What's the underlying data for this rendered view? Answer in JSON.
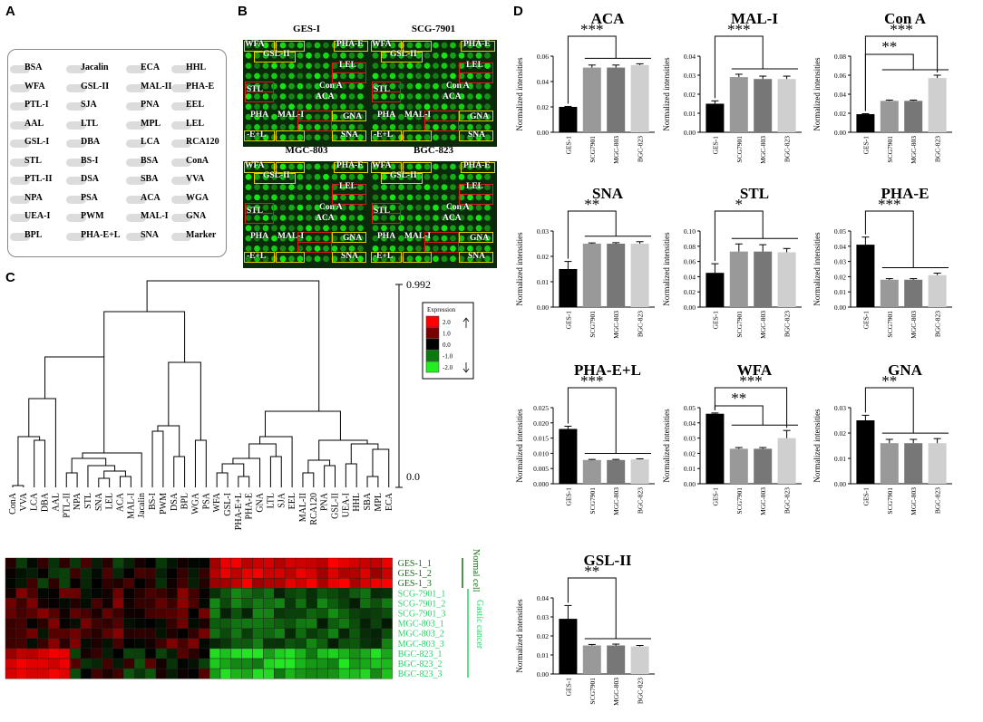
{
  "panels": {
    "a": "A",
    "b": "B",
    "c": "C",
    "d": "D"
  },
  "layout_grid": [
    [
      "BSA",
      "Jacalin",
      "ECA",
      "HHL"
    ],
    [
      "WFA",
      "GSL-II",
      "MAL-II",
      "PHA-E"
    ],
    [
      "PTL-I",
      "SJA",
      "PNA",
      "EEL"
    ],
    [
      "AAL",
      "LTL",
      "MPL",
      "LEL"
    ],
    [
      "GSL-I",
      "DBA",
      "LCA",
      "RCA120"
    ],
    [
      "STL",
      "BS-I",
      "BSA",
      "ConA"
    ],
    [
      "PTL-II",
      "DSA",
      "SBA",
      "VVA"
    ],
    [
      "NPA",
      "PSA",
      "ACA",
      "WGA"
    ],
    [
      "UEA-I",
      "PWM",
      "MAL-I",
      "GNA"
    ],
    [
      "BPL",
      "PHA-E+L",
      "SNA",
      "Marker"
    ]
  ],
  "arrays": [
    {
      "title": "GES-I"
    },
    {
      "title": "SCG-7901"
    },
    {
      "title": "MGC-803"
    },
    {
      "title": "BGC-823"
    }
  ],
  "array_labels": {
    "wfa": "WFA",
    "phae": "PHA-E",
    "gsl": "GSL-II",
    "lel": "LEL",
    "cona": "Con A",
    "stl": "STL",
    "aca": "ACA",
    "pha": "PHA",
    "mali": "MAL-I",
    "gna": "GNA",
    "el": "-E+L",
    "sna": "SNA"
  },
  "dendrogram": {
    "scale_top": "0.992",
    "scale_bottom": "0.0",
    "legend_title": "Expression",
    "legend_values": [
      "2.0",
      "1.0",
      "0.0",
      "-1.0",
      "-2.0"
    ],
    "legend_colors": [
      "#ff0000",
      "#7a0000",
      "#000000",
      "#0a7a0a",
      "#22ee22"
    ],
    "leaves": [
      "ConA",
      "VVA",
      "LCA",
      "DBA",
      "AAL",
      "PTL-II",
      "NPA",
      "STL",
      "SNA",
      "LEL",
      "ACA",
      "MAL-I",
      "Jacalin",
      "BS-I",
      "PWM",
      "DSA",
      "BPL",
      "WGA",
      "PSA",
      "WFA",
      "GSL-I",
      "PHA-E+L",
      "PHA-E",
      "GNA",
      "LTL",
      "SJA",
      "EEL",
      "MAL-II",
      "RCA120",
      "PNA",
      "GSL-II",
      "UEA-I",
      "HHL",
      "SBA",
      "MPL",
      "ECA"
    ]
  },
  "heatmap": {
    "rows": [
      "GES-1_1",
      "GES-1_2",
      "GES-1_3",
      "SCG-7901_1",
      "SCG-7901_2",
      "SCG-7901_3",
      "MGC-803_1",
      "MGC-803_2",
      "MGC-803_3",
      "BGC-823_1",
      "BGC-823_2",
      "BGC-823_3"
    ],
    "group_normal": "Normal cell",
    "group_cancer": "Gastic cancer"
  },
  "chart_data": [
    {
      "type": "bar",
      "title": "ACA",
      "ylabel": "Normalized intensities",
      "categories": [
        "GES-1",
        "SCG7901",
        "MGC-803",
        "BGC-823"
      ],
      "values": [
        0.02,
        0.051,
        0.051,
        0.053
      ],
      "errors": [
        0.0004,
        0.002,
        0.002,
        0.001
      ],
      "ylim": [
        0,
        0.06
      ],
      "yticks": [
        "0.00",
        "0.02",
        "0.04",
        "0.06"
      ],
      "sig": "***"
    },
    {
      "type": "bar",
      "title": "MAL-I",
      "ylabel": "Normalized intensities",
      "categories": [
        "GES-1",
        "SCG7901",
        "MGC-803",
        "BGC-823"
      ],
      "values": [
        0.015,
        0.029,
        0.028,
        0.028
      ],
      "errors": [
        0.0015,
        0.0015,
        0.0015,
        0.0015
      ],
      "ylim": [
        0,
        0.04
      ],
      "yticks": [
        "0.00",
        "0.01",
        "0.02",
        "0.03",
        "0.04"
      ],
      "sig": "***"
    },
    {
      "type": "bar",
      "title": "Con A",
      "ylabel": "Normalized intensities",
      "categories": [
        "GES-1",
        "SCG7901",
        "MGC-803",
        "BGC-823"
      ],
      "values": [
        0.019,
        0.033,
        0.033,
        0.057
      ],
      "errors": [
        0.0005,
        0.0008,
        0.0008,
        0.003
      ],
      "ylim": [
        0,
        0.08
      ],
      "yticks": [
        "0.00",
        "0.02",
        "0.04",
        "0.06",
        "0.08"
      ],
      "sig": "***",
      "sig2": "**"
    },
    {
      "type": "bar",
      "title": "SNA",
      "ylabel": "Normalized intensities",
      "categories": [
        "GES-1",
        "SCG7901",
        "MGC-803",
        "BGC-823"
      ],
      "values": [
        0.015,
        0.025,
        0.025,
        0.025
      ],
      "errors": [
        0.003,
        0.0003,
        0.0004,
        0.0008
      ],
      "ylim": [
        0,
        0.03
      ],
      "yticks": [
        "0.00",
        "0.01",
        "0.02",
        "0.03"
      ],
      "sig": "**"
    },
    {
      "type": "bar",
      "title": "STL",
      "ylabel": "Normalized intensities",
      "categories": [
        "GES-1",
        "SCG7901",
        "MGC-803",
        "BGC-823"
      ],
      "values": [
        0.045,
        0.073,
        0.073,
        0.072
      ],
      "errors": [
        0.012,
        0.01,
        0.009,
        0.005
      ],
      "ylim": [
        0,
        0.1
      ],
      "yticks": [
        "0.00",
        "0.02",
        "0.04",
        "0.06",
        "0.08",
        "0.10"
      ],
      "sig": "*"
    },
    {
      "type": "bar",
      "title": "PHA-E",
      "ylabel": "Normalized intensities",
      "categories": [
        "GES-1",
        "SCG7901",
        "MGC-803",
        "BGC-823"
      ],
      "values": [
        0.041,
        0.018,
        0.018,
        0.021
      ],
      "errors": [
        0.005,
        0.0007,
        0.0007,
        0.0013
      ],
      "ylim": [
        0,
        0.05
      ],
      "yticks": [
        "0.00",
        "0.01",
        "0.02",
        "0.03",
        "0.04",
        "0.05"
      ],
      "sig": "***"
    },
    {
      "type": "bar",
      "title": "PHA-E+L",
      "ylabel": "Normalized intensities",
      "categories": [
        "GES-1",
        "SCG7901",
        "MGC-803",
        "BGC-823"
      ],
      "values": [
        0.018,
        0.0078,
        0.0078,
        0.008
      ],
      "errors": [
        0.0009,
        0.0002,
        0.0002,
        0.0002
      ],
      "ylim": [
        0,
        0.025
      ],
      "yticks": [
        "0.000",
        "0.005",
        "0.010",
        "0.015",
        "0.020",
        "0.025"
      ],
      "sig": "***"
    },
    {
      "type": "bar",
      "title": "WFA",
      "ylabel": "Normalized intensities",
      "categories": [
        "GES-1",
        "SCG7901",
        "MGC-803",
        "BGC-823"
      ],
      "values": [
        0.046,
        0.023,
        0.023,
        0.03
      ],
      "errors": [
        0.0005,
        0.0008,
        0.0008,
        0.005
      ],
      "ylim": [
        0,
        0.05
      ],
      "yticks": [
        "0.00",
        "0.01",
        "0.02",
        "0.03",
        "0.04",
        "0.05"
      ],
      "sig": "***",
      "sig2": "**"
    },
    {
      "type": "bar",
      "title": "GNA",
      "ylabel": "Normalized intensities",
      "categories": [
        "GES-1",
        "SCG7901",
        "MGC-803",
        "BGC-823"
      ],
      "values": [
        0.025,
        0.016,
        0.016,
        0.016
      ],
      "errors": [
        0.002,
        0.0015,
        0.0015,
        0.0018
      ],
      "ylim": [
        0,
        0.03
      ],
      "yticks": [
        "0.00",
        "0.01",
        "0.02",
        "0.03"
      ],
      "sig": "**"
    },
    {
      "type": "bar",
      "title": "GSL-II",
      "ylabel": "Normalized intensities",
      "categories": [
        "GES-1",
        "SCG7901",
        "MGC-803",
        "BGC-823"
      ],
      "values": [
        0.029,
        0.015,
        0.015,
        0.0145
      ],
      "errors": [
        0.007,
        0.0005,
        0.0007,
        0.0005
      ],
      "ylim": [
        0,
        0.04
      ],
      "yticks": [
        "0.00",
        "0.01",
        "0.02",
        "0.03",
        "0.04"
      ],
      "sig": "**"
    }
  ],
  "colors": {
    "bar": [
      "#000000",
      "#999999",
      "#777777",
      "#cfcfcf"
    ]
  }
}
